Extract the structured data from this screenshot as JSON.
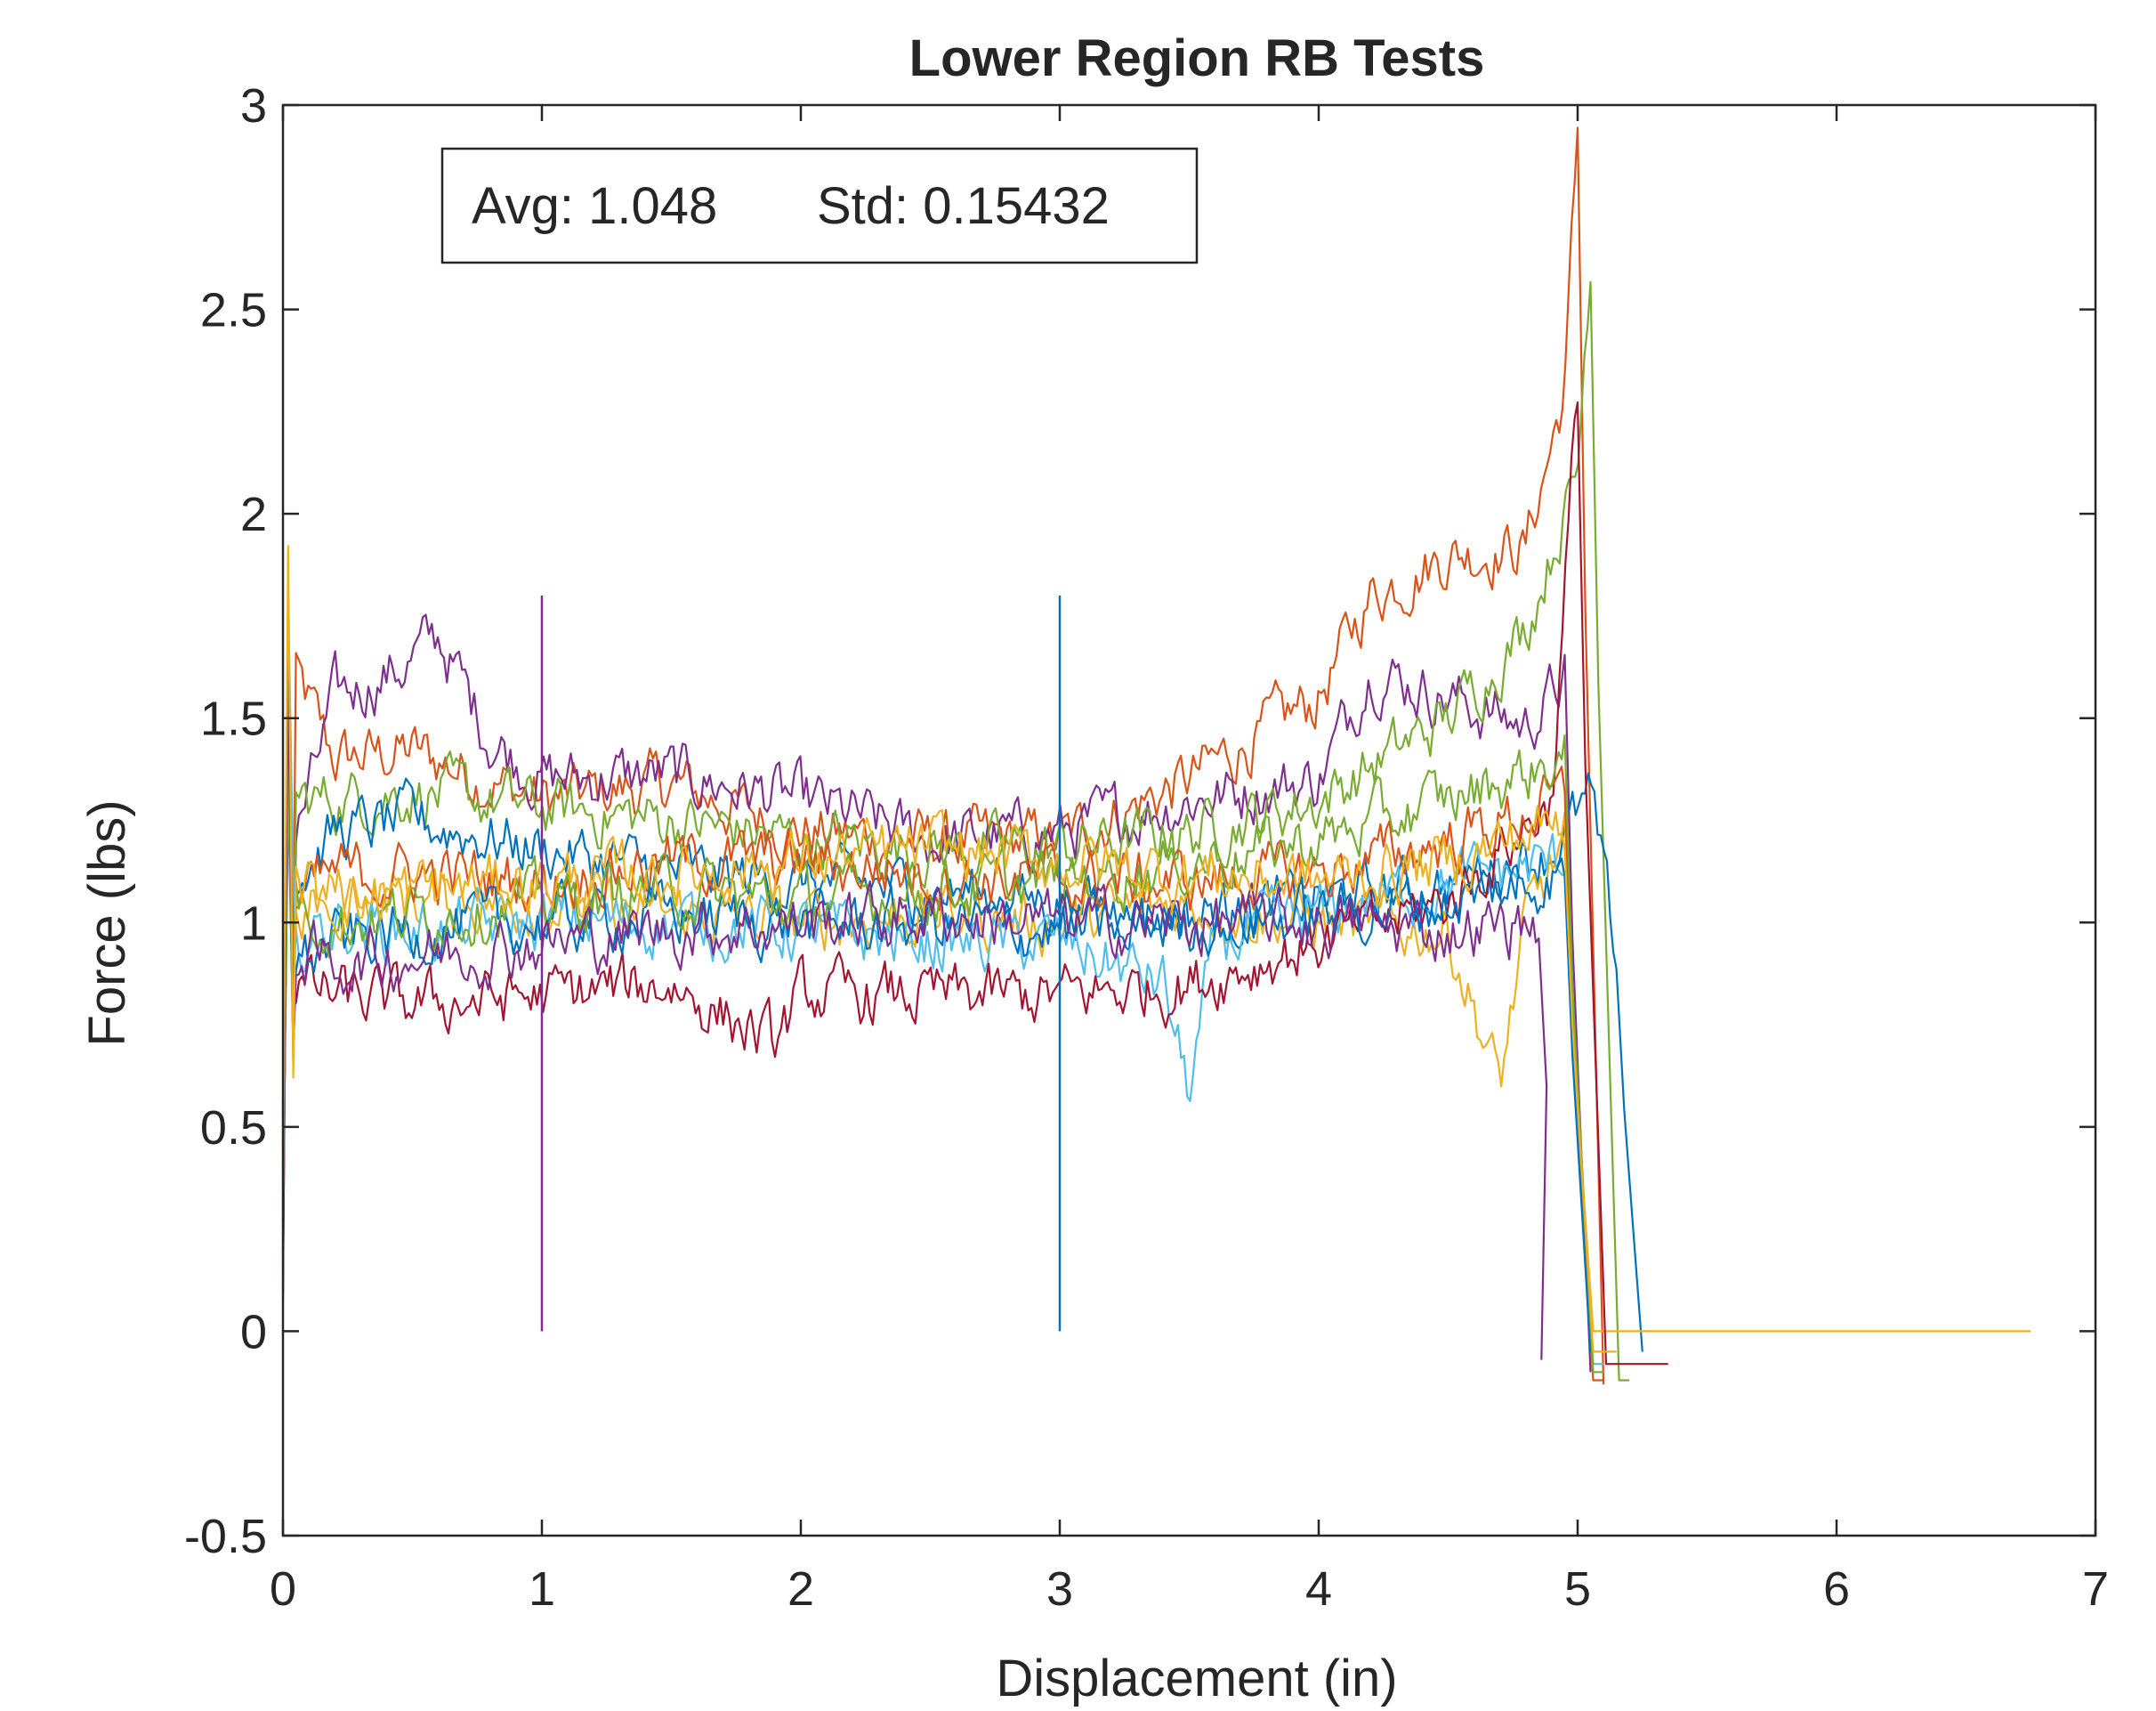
{
  "chart_data": {
    "type": "line",
    "title": "Lower Region RB Tests",
    "xlabel": "Displacement (in)",
    "ylabel": "Force (lbs)",
    "xlim": [
      0,
      7
    ],
    "ylim": [
      -0.5,
      3
    ],
    "xticks": [
      "0",
      "1",
      "2",
      "3",
      "4",
      "5",
      "6",
      "7"
    ],
    "yticks": [
      "-0.5",
      "0",
      "0.5",
      "1",
      "1.5",
      "2",
      "2.5",
      "3"
    ],
    "grid": false,
    "annotation": {
      "avg": "Avg: 1.048",
      "std": "Std: 0.15432"
    },
    "colors": [
      "#0072BD",
      "#D95319",
      "#EDB120",
      "#7E2F8E",
      "#77AC30",
      "#4DBEEE",
      "#A2142F"
    ],
    "series": [
      {
        "color": "#D95319",
        "profile": [
          [
            0.05,
            1.6
          ],
          [
            0.2,
            1.4
          ],
          [
            0.5,
            1.42
          ],
          [
            1.0,
            1.3
          ],
          [
            1.5,
            1.34
          ],
          [
            2.0,
            1.22
          ],
          [
            2.5,
            1.2
          ],
          [
            3.0,
            1.2
          ],
          [
            3.5,
            1.35
          ],
          [
            4.0,
            1.55
          ],
          [
            4.2,
            1.8
          ],
          [
            4.5,
            1.9
          ],
          [
            4.8,
            1.92
          ],
          [
            4.95,
            2.3
          ],
          [
            5.0,
            2.93
          ]
        ],
        "endX": 5.1,
        "endY": -0.13
      },
      {
        "color": "#7E2F8E",
        "profile": [
          [
            0.05,
            1.2
          ],
          [
            0.2,
            1.55
          ],
          [
            0.45,
            1.62
          ],
          [
            0.6,
            1.7
          ],
          [
            0.8,
            1.45
          ],
          [
            1.0,
            1.35
          ],
          [
            1.5,
            1.36
          ],
          [
            2.0,
            1.3
          ],
          [
            2.5,
            1.2
          ],
          [
            3.0,
            1.22
          ],
          [
            3.5,
            1.3
          ],
          [
            4.0,
            1.35
          ],
          [
            4.2,
            1.62
          ],
          [
            4.5,
            1.55
          ],
          [
            4.8,
            1.48
          ],
          [
            4.95,
            1.6
          ]
        ],
        "endX": 5.05,
        "endY": -0.1
      },
      {
        "color": "#77AC30",
        "profile": [
          [
            0.05,
            1.3
          ],
          [
            0.2,
            1.3
          ],
          [
            0.5,
            1.32
          ],
          [
            1.0,
            1.28
          ],
          [
            1.5,
            1.25
          ],
          [
            2.0,
            1.2
          ],
          [
            2.5,
            1.18
          ],
          [
            3.0,
            1.18
          ],
          [
            3.5,
            1.22
          ],
          [
            4.0,
            1.3
          ],
          [
            4.5,
            1.5
          ],
          [
            4.8,
            1.72
          ],
          [
            5.0,
            2.1
          ],
          [
            5.05,
            2.64
          ]
        ],
        "endX": 5.2,
        "endY": -0.12
      },
      {
        "color": "#0072BD",
        "profile": [
          [
            0.05,
            1.1
          ],
          [
            0.2,
            1.22
          ],
          [
            0.5,
            1.25
          ],
          [
            1.0,
            1.18
          ],
          [
            1.5,
            1.12
          ],
          [
            2.0,
            1.1
          ],
          [
            2.5,
            1.08
          ],
          [
            3.0,
            1.05
          ],
          [
            3.5,
            1.02
          ],
          [
            4.0,
            1.05
          ],
          [
            4.5,
            1.1
          ],
          [
            4.9,
            1.18
          ],
          [
            5.05,
            1.3
          ],
          [
            5.15,
            0.9
          ]
        ],
        "endX": 5.25,
        "endY": -0.05
      },
      {
        "color": "#EDB120",
        "profile": [
          [
            0.05,
            1.0
          ],
          [
            0.2,
            1.08
          ],
          [
            0.5,
            1.06
          ],
          [
            1.0,
            1.05
          ],
          [
            1.5,
            1.02
          ],
          [
            2.0,
            1.0
          ],
          [
            2.5,
            1.02
          ],
          [
            3.0,
            1.0
          ],
          [
            3.5,
            1.05
          ],
          [
            4.0,
            1.0
          ],
          [
            4.5,
            0.98
          ],
          [
            4.7,
            0.6
          ],
          [
            4.8,
            1.0
          ],
          [
            4.95,
            1.2
          ]
        ],
        "endX": 6.75,
        "endY": 0.0
      },
      {
        "color": "#4DBEEE",
        "profile": [
          [
            0.05,
            0.95
          ],
          [
            0.2,
            1.0
          ],
          [
            0.5,
            0.98
          ],
          [
            1.0,
            1.0
          ],
          [
            1.5,
            1.0
          ],
          [
            2.0,
            0.98
          ],
          [
            2.5,
            0.95
          ],
          [
            3.0,
            0.95
          ],
          [
            3.4,
            0.85
          ],
          [
            3.5,
            0.58
          ],
          [
            3.6,
            0.95
          ],
          [
            4.0,
            1.02
          ],
          [
            4.5,
            1.1
          ],
          [
            4.95,
            1.15
          ]
        ],
        "endX": 5.1,
        "endY": -0.08
      },
      {
        "color": "#A2142F",
        "profile": [
          [
            0.05,
            0.85
          ],
          [
            0.2,
            0.82
          ],
          [
            0.5,
            0.8
          ],
          [
            1.0,
            0.82
          ],
          [
            1.5,
            0.85
          ],
          [
            1.9,
            0.7
          ],
          [
            2.0,
            0.82
          ],
          [
            2.5,
            0.82
          ],
          [
            3.0,
            0.82
          ],
          [
            3.5,
            0.85
          ],
          [
            4.0,
            0.95
          ],
          [
            4.5,
            1.05
          ],
          [
            4.9,
            1.3
          ],
          [
            5.0,
            2.3
          ]
        ],
        "endX": 5.35,
        "endY": -0.08
      },
      {
        "color": "#D95319",
        "profile": [
          [
            0.05,
            1.05
          ],
          [
            0.2,
            1.12
          ],
          [
            0.5,
            1.12
          ],
          [
            1.0,
            1.1
          ],
          [
            1.5,
            1.15
          ],
          [
            2.0,
            1.15
          ],
          [
            2.5,
            1.12
          ],
          [
            3.0,
            1.1
          ],
          [
            3.5,
            1.1
          ],
          [
            4.0,
            1.12
          ],
          [
            4.5,
            1.2
          ],
          [
            4.95,
            1.3
          ]
        ],
        "endX": 5.1,
        "endY": -0.12
      },
      {
        "color": "#0072BD",
        "profile": [
          [
            0.05,
            0.9
          ],
          [
            0.2,
            0.95
          ],
          [
            0.5,
            0.98
          ],
          [
            1.0,
            1.0
          ],
          [
            1.5,
            1.02
          ],
          [
            2.0,
            1.0
          ],
          [
            2.5,
            1.0
          ],
          [
            3.0,
            0.98
          ],
          [
            3.5,
            1.0
          ],
          [
            4.0,
            1.02
          ],
          [
            4.5,
            1.05
          ],
          [
            4.95,
            1.12
          ]
        ],
        "endX": 5.05,
        "endY": -0.05
      },
      {
        "color": "#77AC30",
        "profile": [
          [
            0.05,
            1.05
          ],
          [
            0.2,
            1.0
          ],
          [
            0.5,
            1.02
          ],
          [
            1.0,
            1.05
          ],
          [
            1.5,
            1.08
          ],
          [
            2.0,
            1.05
          ],
          [
            2.5,
            1.08
          ],
          [
            3.0,
            1.1
          ],
          [
            3.5,
            1.15
          ],
          [
            4.0,
            1.2
          ],
          [
            4.5,
            1.3
          ],
          [
            4.95,
            1.4
          ]
        ],
        "endX": 5.1,
        "endY": -0.1
      },
      {
        "color": "#7E2F8E",
        "profile": [
          [
            0.05,
            0.92
          ],
          [
            0.2,
            0.9
          ],
          [
            0.5,
            0.92
          ],
          [
            1.0,
            0.95
          ],
          [
            1.5,
            0.98
          ],
          [
            2.0,
            1.0
          ],
          [
            2.5,
            1.02
          ],
          [
            3.0,
            1.0
          ],
          [
            3.5,
            1.0
          ],
          [
            4.0,
            1.0
          ],
          [
            4.5,
            0.98
          ],
          [
            4.85,
            1.0
          ]
        ],
        "endX": 4.86,
        "endY": -0.07
      },
      {
        "color": "#EDB120",
        "profile": [
          [
            0.05,
            1.1
          ],
          [
            0.2,
            1.05
          ],
          [
            0.5,
            1.08
          ],
          [
            1.0,
            1.1
          ],
          [
            1.5,
            1.12
          ],
          [
            2.0,
            1.15
          ],
          [
            2.5,
            1.18
          ],
          [
            3.0,
            1.15
          ],
          [
            3.5,
            1.12
          ],
          [
            4.0,
            1.1
          ],
          [
            4.5,
            1.15
          ],
          [
            4.95,
            1.25
          ]
        ],
        "endX": 5.15,
        "endY": -0.05
      }
    ],
    "spikes": [
      {
        "x": 1.0,
        "y": 1.8,
        "color": "#7E2F8E"
      },
      {
        "x": 3.0,
        "y": 1.8,
        "color": "#0072BD"
      }
    ]
  }
}
